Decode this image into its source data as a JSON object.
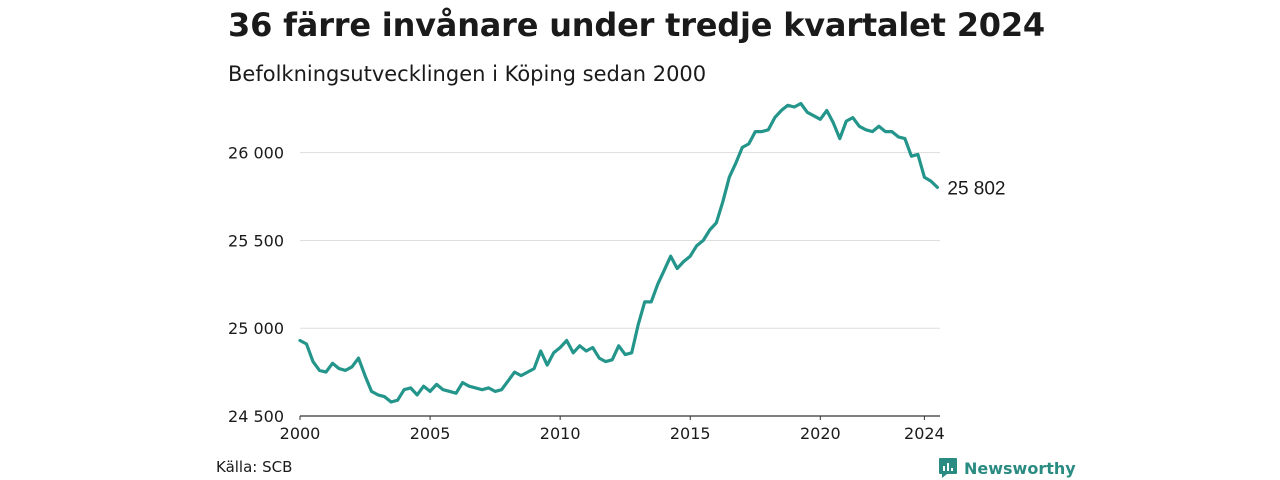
{
  "title": "36 färre invånare under tredje kvartalet 2024",
  "subtitle": "Befolkningsutvecklingen i Köping sedan 2000",
  "source": "Källa: SCB",
  "brand": {
    "name": "Newsworthy",
    "color": "#2a8b82",
    "icon": "newsworthy-logo-icon"
  },
  "chart_data": {
    "type": "line",
    "line_color": "#23958a",
    "grid": true,
    "ylim": [
      24500,
      26300
    ],
    "y_ticks": [
      24500,
      25000,
      25500,
      26000
    ],
    "y_tick_labels": [
      "24 500",
      "25 000",
      "25 500",
      "26 000"
    ],
    "x_ticks": [
      2000,
      2005,
      2010,
      2015,
      2020,
      2024
    ],
    "x_tick_labels": [
      "2000",
      "2005",
      "2010",
      "2015",
      "2020",
      "2024"
    ],
    "end_label": "25 802",
    "series": [
      {
        "x": [
          2000.0,
          2000.25,
          2000.5,
          2000.75,
          2001.0,
          2001.25,
          2001.5,
          2001.75,
          2002.0,
          2002.25,
          2002.5,
          2002.75,
          2003.0,
          2003.25,
          2003.5,
          2003.75,
          2004.0,
          2004.25,
          2004.5,
          2004.75,
          2005.0,
          2005.25,
          2005.5,
          2005.75,
          2006.0,
          2006.25,
          2006.5,
          2006.75,
          2007.0,
          2007.25,
          2007.5,
          2007.75,
          2008.0,
          2008.25,
          2008.5,
          2008.75,
          2009.0,
          2009.25,
          2009.5,
          2009.75,
          2010.0,
          2010.25,
          2010.5,
          2010.75,
          2011.0,
          2011.25,
          2011.5,
          2011.75,
          2012.0,
          2012.25,
          2012.5,
          2012.75,
          2013.0,
          2013.25,
          2013.5,
          2013.75,
          2014.0,
          2014.25,
          2014.5,
          2014.75,
          2015.0,
          2015.25,
          2015.5,
          2015.75,
          2016.0,
          2016.25,
          2016.5,
          2016.75,
          2017.0,
          2017.25,
          2017.5,
          2017.75,
          2018.0,
          2018.25,
          2018.5,
          2018.75,
          2019.0,
          2019.25,
          2019.5,
          2019.75,
          2020.0,
          2020.25,
          2020.5,
          2020.75,
          2021.0,
          2021.25,
          2021.5,
          2021.75,
          2022.0,
          2022.25,
          2022.5,
          2022.75,
          2023.0,
          2023.25,
          2023.5,
          2023.75,
          2024.0,
          2024.25,
          2024.5
        ],
        "values": [
          24930,
          24910,
          24810,
          24760,
          24750,
          24800,
          24770,
          24760,
          24780,
          24830,
          24730,
          24640,
          24620,
          24610,
          24580,
          24590,
          24650,
          24660,
          24620,
          24670,
          24640,
          24680,
          24650,
          24640,
          24630,
          24690,
          24670,
          24660,
          24650,
          24660,
          24640,
          24650,
          24700,
          24750,
          24730,
          24750,
          24770,
          24870,
          24790,
          24860,
          24890,
          24930,
          24860,
          24900,
          24870,
          24890,
          24830,
          24810,
          24820,
          24900,
          24850,
          24860,
          25020,
          25150,
          25150,
          25250,
          25330,
          25410,
          25340,
          25380,
          25410,
          25470,
          25500,
          25560,
          25600,
          25720,
          25860,
          25940,
          26030,
          26050,
          26120,
          26120,
          26130,
          26200,
          26240,
          26270,
          26260,
          26280,
          26230,
          26210,
          26190,
          26240,
          26170,
          26080,
          26180,
          26200,
          26150,
          26130,
          26120,
          26150,
          26120,
          26120,
          26090,
          26080,
          25980,
          25990,
          25860,
          25838,
          25802
        ]
      }
    ]
  }
}
